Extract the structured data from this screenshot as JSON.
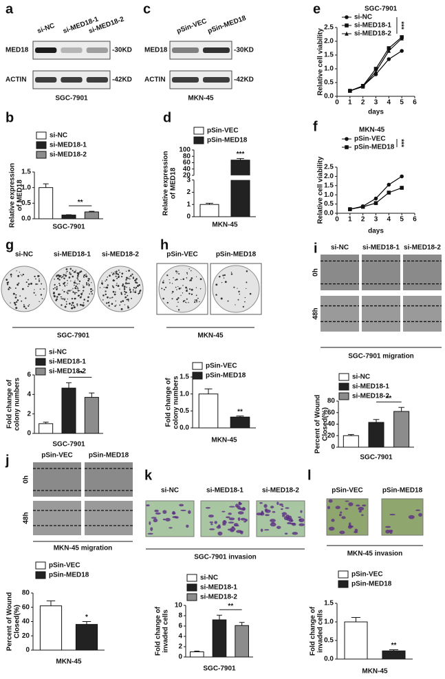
{
  "panel_letters": [
    "a",
    "b",
    "c",
    "d",
    "e",
    "f",
    "g",
    "h",
    "i",
    "j",
    "k",
    "l"
  ],
  "blots": [
    {
      "lanes": [
        "si-NC",
        "si-MED18-1",
        "si-MED18-2"
      ],
      "rows": [
        {
          "protein": "MED18",
          "size": "-30KD"
        },
        {
          "protein": "ACTIN",
          "size": "-42KD"
        }
      ],
      "cell_line": "SGC-7901"
    },
    {
      "lanes": [
        "pSin-VEC",
        "pSin-MED18"
      ],
      "rows": [
        {
          "protein": "MED18",
          "size": "-30KD"
        },
        {
          "protein": "ACTIN",
          "size": "-42KD"
        }
      ],
      "cell_line": "MKN-45"
    }
  ],
  "colony_assays": [
    {
      "groups": [
        "si-NC",
        "si-MED18-1",
        "si-MED18-2"
      ],
      "cell_line": "SGC-7901"
    },
    {
      "groups": [
        "pSin-VEC",
        "pSin-MED18"
      ],
      "cell_line": "MKN-45"
    }
  ],
  "wound_assays": [
    {
      "groups": [
        "si-NC",
        "si-MED18-1",
        "si-MED18-2"
      ],
      "timepoints": [
        "0h",
        "48h"
      ],
      "caption": "SGC-7901 migration"
    },
    {
      "groups": [
        "pSin-VEC",
        "pSin-MED18"
      ],
      "timepoints": [
        "0h",
        "48h"
      ],
      "caption": "MKN-45 migration"
    }
  ],
  "invasion_assays": [
    {
      "groups": [
        "si-NC",
        "si-MED18-1",
        "si-MED18-2"
      ],
      "caption": "SGC-7901  invasion"
    },
    {
      "groups": [
        "pSin-VEC",
        "pSin-MED18"
      ],
      "caption": "MKN-45 invasion"
    }
  ],
  "chart_data": [
    {
      "type": "bar",
      "ylabel": [
        "Relative expression",
        "of MED18"
      ],
      "xlabel": "SGC-7901",
      "categories": [
        null
      ],
      "series": [
        {
          "name": "si-NC",
          "color": "#ffffff",
          "values": [
            1.0
          ],
          "errors": [
            0.12
          ]
        },
        {
          "name": "si-MED18-1",
          "color": "#222222",
          "values": [
            0.12
          ],
          "errors": [
            0.01
          ]
        },
        {
          "name": "si-MED18-2",
          "color": "#8c8c8c",
          "values": [
            0.22
          ],
          "errors": [
            0.02
          ]
        }
      ],
      "ylim": [
        0,
        1.5
      ],
      "yticks": [
        {
          "value": 0,
          "label": "0.0"
        },
        {
          "value": 0.5,
          "label": "0.5"
        },
        {
          "value": 1,
          "label": "1.0"
        },
        {
          "value": 1.5,
          "label": "1.5"
        }
      ],
      "significance": "**"
    },
    {
      "type": "bar",
      "ylabel": [
        "Relative expression",
        "of MED18"
      ],
      "xlabel": "MKN-45",
      "categories": [
        null
      ],
      "series": [
        {
          "name": "pSin-VEC",
          "color": "#ffffff",
          "values": [
            1.0
          ],
          "errors": [
            0.1
          ]
        },
        {
          "name": "pSin-MED18",
          "color": "#222222",
          "values": [
            68
          ],
          "errors": [
            5
          ]
        }
      ],
      "ylim": [
        0,
        100
      ],
      "ybreak": [
        3,
        20
      ],
      "yticks": [
        0,
        1,
        2,
        3,
        20,
        40,
        60,
        80,
        100
      ],
      "significance": "***"
    },
    {
      "type": "line",
      "title": "SGC-7901",
      "xlabel": "days",
      "ylabel": [
        "Relative cell viability"
      ],
      "x": [
        1,
        2,
        3,
        4,
        5
      ],
      "xlim": [
        0,
        6
      ],
      "xticks": [
        0,
        1,
        2,
        3,
        4,
        5,
        6
      ],
      "ylim": [
        0,
        2.5
      ],
      "yticks": [
        {
          "value": 0,
          "label": "0.0"
        },
        {
          "value": 0.5,
          "label": "0.5"
        },
        {
          "value": 1,
          "label": "1.0"
        },
        {
          "value": 1.5,
          "label": "1.5"
        },
        {
          "value": 2,
          "label": "2.0"
        },
        {
          "value": 2.5,
          "label": "2.5"
        }
      ],
      "series": [
        {
          "name": "si-NC",
          "color": "#000000",
          "values": [
            0.2,
            0.37,
            0.8,
            1.35,
            1.65
          ]
        },
        {
          "name": "si-MED18-1",
          "color": "#000000",
          "values": [
            0.2,
            0.38,
            1.0,
            1.75,
            2.15
          ]
        },
        {
          "name": "si-MED18-2",
          "color": "#000000",
          "values": [
            0.2,
            0.35,
            0.9,
            1.65,
            2.1
          ]
        }
      ],
      "significance": "***"
    },
    {
      "type": "line",
      "title": "MKN-45",
      "xlabel": "days",
      "ylabel": [
        "Relative cell viability"
      ],
      "x": [
        1,
        2,
        3,
        4,
        5
      ],
      "xlim": [
        0,
        6
      ],
      "xticks": [
        0,
        1,
        2,
        3,
        4,
        5,
        6
      ],
      "ylim": [
        0,
        2.5
      ],
      "yticks": [
        {
          "value": 0,
          "label": "0.0"
        },
        {
          "value": 0.5,
          "label": "0.5"
        },
        {
          "value": 1,
          "label": "1.0"
        },
        {
          "value": 1.5,
          "label": "1.5"
        },
        {
          "value": 2,
          "label": "2.0"
        },
        {
          "value": 2.5,
          "label": "2.5"
        }
      ],
      "series": [
        {
          "name": "pSin-VEC",
          "color": "#000000",
          "values": [
            0.22,
            0.38,
            0.8,
            1.55,
            2.0
          ]
        },
        {
          "name": "pSin-MED18",
          "color": "#000000",
          "values": [
            0.22,
            0.35,
            0.55,
            1.12,
            1.38
          ]
        }
      ],
      "significance": "***"
    },
    {
      "type": "bar",
      "ylabel": [
        "Fold change of",
        "colony numbers"
      ],
      "xlabel": "SGC-7901",
      "categories": [
        null
      ],
      "series": [
        {
          "name": "si-NC",
          "color": "#ffffff",
          "values": [
            1.0
          ],
          "errors": [
            0.15
          ]
        },
        {
          "name": "si-MED18-1",
          "color": "#222222",
          "values": [
            4.65
          ],
          "errors": [
            0.55
          ]
        },
        {
          "name": "si-MED18-2",
          "color": "#8c8c8c",
          "values": [
            3.7
          ],
          "errors": [
            0.45
          ]
        }
      ],
      "ylim": [
        0,
        6
      ],
      "yticks": [
        0,
        2,
        4,
        6
      ],
      "significance": "**"
    },
    {
      "type": "bar",
      "ylabel": [
        "Fold change of",
        "colony numbers"
      ],
      "xlabel": "MKN-45",
      "categories": [
        null
      ],
      "series": [
        {
          "name": "pSin-VEC",
          "color": "#ffffff",
          "values": [
            1.0
          ],
          "errors": [
            0.15
          ]
        },
        {
          "name": "pSin-MED18",
          "color": "#222222",
          "values": [
            0.32
          ],
          "errors": [
            0.03
          ]
        }
      ],
      "ylim": [
        0,
        1.5
      ],
      "yticks": [
        {
          "value": 0,
          "label": "0.0"
        },
        {
          "value": 0.5,
          "label": "0.5"
        },
        {
          "value": 1,
          "label": "1.0"
        },
        {
          "value": 1.5,
          "label": "1.5"
        }
      ],
      "significance": "**"
    },
    {
      "type": "bar",
      "ylabel": [
        "Percent of Wound",
        "Closed(%)"
      ],
      "xlabel": "SGC-7901",
      "categories": [
        null
      ],
      "series": [
        {
          "name": "si-NC",
          "color": "#ffffff",
          "values": [
            20
          ],
          "errors": [
            2
          ]
        },
        {
          "name": "si-MED18-1",
          "color": "#222222",
          "values": [
            43
          ],
          "errors": [
            5
          ]
        },
        {
          "name": "si-MED18-2",
          "color": "#8c8c8c",
          "values": [
            62
          ],
          "errors": [
            7
          ]
        }
      ],
      "ylim": [
        0,
        80
      ],
      "yticks": [
        0,
        20,
        40,
        60,
        80
      ],
      "significance": "**"
    },
    {
      "type": "bar",
      "ylabel": [
        "Percent of Wound",
        "Closed(%)"
      ],
      "xlabel": "MKN-45",
      "categories": [
        null
      ],
      "series": [
        {
          "name": "pSin-VEC",
          "color": "#ffffff",
          "values": [
            62
          ],
          "errors": [
            7
          ]
        },
        {
          "name": "pSin-MED18",
          "color": "#222222",
          "values": [
            36
          ],
          "errors": [
            4
          ]
        }
      ],
      "ylim": [
        0,
        80
      ],
      "yticks": [
        0,
        20,
        40,
        60,
        80
      ],
      "significance": "*"
    },
    {
      "type": "bar",
      "ylabel": [
        "Fold change of",
        "invaded cells"
      ],
      "xlabel": "SGC-7901",
      "categories": [
        null
      ],
      "series": [
        {
          "name": "si-NC",
          "color": "#ffffff",
          "values": [
            1.0
          ],
          "errors": [
            0.15
          ]
        },
        {
          "name": "si-MED18-1",
          "color": "#222222",
          "values": [
            7.2
          ],
          "errors": [
            0.9
          ]
        },
        {
          "name": "si-MED18-2",
          "color": "#8c8c8c",
          "values": [
            6.1
          ],
          "errors": [
            0.6
          ]
        }
      ],
      "ylim": [
        0,
        10
      ],
      "yticks": [
        0,
        2,
        4,
        6,
        8,
        10
      ],
      "significance": "**"
    },
    {
      "type": "bar",
      "ylabel": [
        "Fold change of",
        "invaded cells"
      ],
      "xlabel": "MKN-45",
      "categories": [
        null
      ],
      "series": [
        {
          "name": "pSin-VEC",
          "color": "#ffffff",
          "values": [
            1.0
          ],
          "errors": [
            0.12
          ]
        },
        {
          "name": "pSin-MED18",
          "color": "#222222",
          "values": [
            0.22
          ],
          "errors": [
            0.03
          ]
        }
      ],
      "ylim": [
        0,
        1.5
      ],
      "yticks": [
        {
          "value": 0,
          "label": "0.0"
        },
        {
          "value": 0.5,
          "label": "0.5"
        },
        {
          "value": 1,
          "label": "1.0"
        },
        {
          "value": 1.5,
          "label": "1.5"
        }
      ],
      "significance": "**"
    }
  ]
}
